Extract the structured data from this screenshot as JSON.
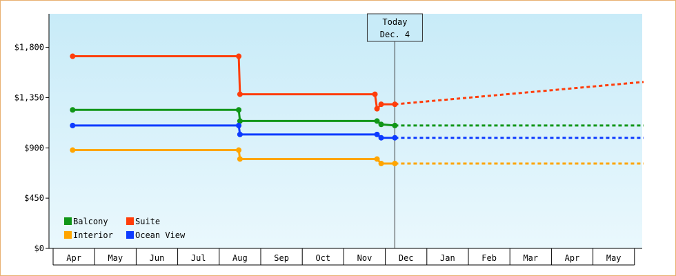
{
  "chart_data": {
    "type": "line",
    "title": "",
    "xlabel": "",
    "ylabel": "",
    "ylim": [
      0,
      2100
    ],
    "y_ticks": [
      0,
      450,
      900,
      1350,
      1800
    ],
    "y_tick_labels": [
      "$0",
      "$450",
      "$900",
      "$1,350",
      "$1,800"
    ],
    "x_ticks": [
      "Apr",
      "May",
      "Jun",
      "Jul",
      "Aug",
      "Sep",
      "Oct",
      "Nov",
      "Dec",
      "Jan",
      "Feb",
      "Mar",
      "Apr",
      "May"
    ],
    "grid": false,
    "legend_placement": "bottom-left",
    "today_marker": {
      "line1": "Today",
      "line2": "Dec. 4",
      "x_month": 7.73
    },
    "series": [
      {
        "name": "Balcony",
        "color": "#109618",
        "points": [
          [
            -0.03,
            1240
          ],
          [
            3.97,
            1240
          ],
          [
            4.0,
            1140
          ],
          [
            7.3,
            1140
          ],
          [
            7.4,
            1110
          ],
          [
            7.73,
            1100
          ]
        ],
        "projection": [
          [
            7.73,
            1100
          ],
          [
            13.72,
            1100
          ]
        ]
      },
      {
        "name": "Suite",
        "color": "#ff3d0a",
        "points": [
          [
            -0.03,
            1720
          ],
          [
            3.97,
            1720
          ],
          [
            4.0,
            1380
          ],
          [
            7.25,
            1380
          ],
          [
            7.3,
            1250
          ],
          [
            7.4,
            1290
          ],
          [
            7.73,
            1290
          ]
        ],
        "projection": [
          [
            7.73,
            1290
          ],
          [
            13.72,
            1490
          ]
        ]
      },
      {
        "name": "Interior",
        "color": "#ffa500",
        "points": [
          [
            -0.03,
            880
          ],
          [
            3.97,
            880
          ],
          [
            4.0,
            800
          ],
          [
            7.3,
            800
          ],
          [
            7.4,
            760
          ],
          [
            7.73,
            760
          ]
        ],
        "projection": [
          [
            7.73,
            760
          ],
          [
            13.72,
            760
          ]
        ]
      },
      {
        "name": "Ocean View",
        "color": "#0d3bff",
        "points": [
          [
            -0.03,
            1100
          ],
          [
            3.97,
            1100
          ],
          [
            4.0,
            1020
          ],
          [
            7.3,
            1020
          ],
          [
            7.4,
            990
          ],
          [
            7.73,
            990
          ]
        ],
        "projection": [
          [
            7.73,
            990
          ],
          [
            13.72,
            990
          ]
        ]
      }
    ],
    "legend": [
      {
        "name": "Balcony",
        "color": "#109618"
      },
      {
        "name": "Suite",
        "color": "#ff3d0a"
      },
      {
        "name": "Interior",
        "color": "#ffa500"
      },
      {
        "name": "Ocean View",
        "color": "#0d3bff"
      }
    ]
  }
}
